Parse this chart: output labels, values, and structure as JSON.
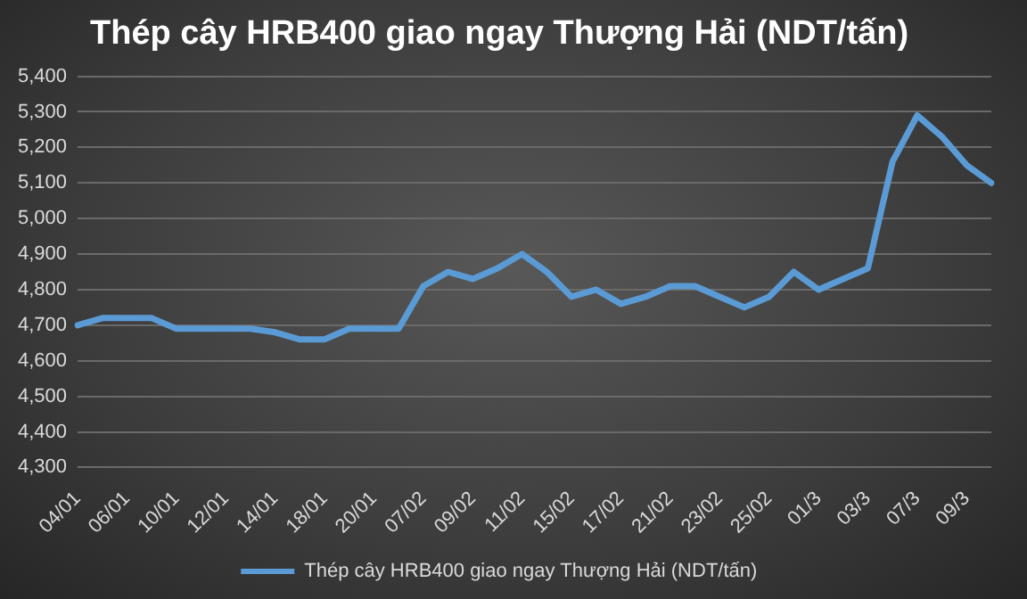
{
  "chart_data": {
    "type": "line",
    "title": "Thép cây HRB400 giao ngay Thượng Hải (NDT/tấn)",
    "categories": [
      "04/01",
      null,
      "06/01",
      null,
      "10/01",
      null,
      "12/01",
      null,
      "14/01",
      null,
      "18/01",
      null,
      "20/01",
      null,
      "07/02",
      null,
      "09/02",
      null,
      "11/02",
      null,
      "15/02",
      null,
      "17/02",
      null,
      "21/02",
      null,
      "23/02",
      null,
      "25/02",
      null,
      "01/3",
      null,
      "03/3",
      null,
      "07/3",
      null,
      "09/3",
      null
    ],
    "series": [
      {
        "name": "Thép cây HRB400 giao ngay Thượng Hải (NDT/tấn)",
        "color": "#5b9bd5",
        "values": [
          4700,
          4720,
          4720,
          4720,
          4690,
          4690,
          4690,
          4690,
          4680,
          4660,
          4660,
          4690,
          4690,
          4690,
          4810,
          4850,
          4830,
          4860,
          4900,
          4850,
          4780,
          4800,
          4760,
          4780,
          4810,
          4810,
          4780,
          4750,
          4780,
          4850,
          4800,
          4830,
          4860,
          5160,
          5290,
          5230,
          5150,
          5100
        ]
      }
    ],
    "ylim": [
      4300,
      5400
    ],
    "yticks": [
      {
        "value": 4300,
        "label": "4,300"
      },
      {
        "value": 4400,
        "label": "4,400"
      },
      {
        "value": 4500,
        "label": "4,500"
      },
      {
        "value": 4600,
        "label": "4,600"
      },
      {
        "value": 4700,
        "label": "4,700"
      },
      {
        "value": 4800,
        "label": "4,800"
      },
      {
        "value": 4900,
        "label": "4,900"
      },
      {
        "value": 5000,
        "label": "5,000"
      },
      {
        "value": 5100,
        "label": "5,100"
      },
      {
        "value": 5200,
        "label": "5,200"
      },
      {
        "value": 5300,
        "label": "5,300"
      },
      {
        "value": 5400,
        "label": "5,400"
      }
    ],
    "grid": "y",
    "legend": "bottom",
    "marker": "none",
    "line_style": "solid"
  }
}
